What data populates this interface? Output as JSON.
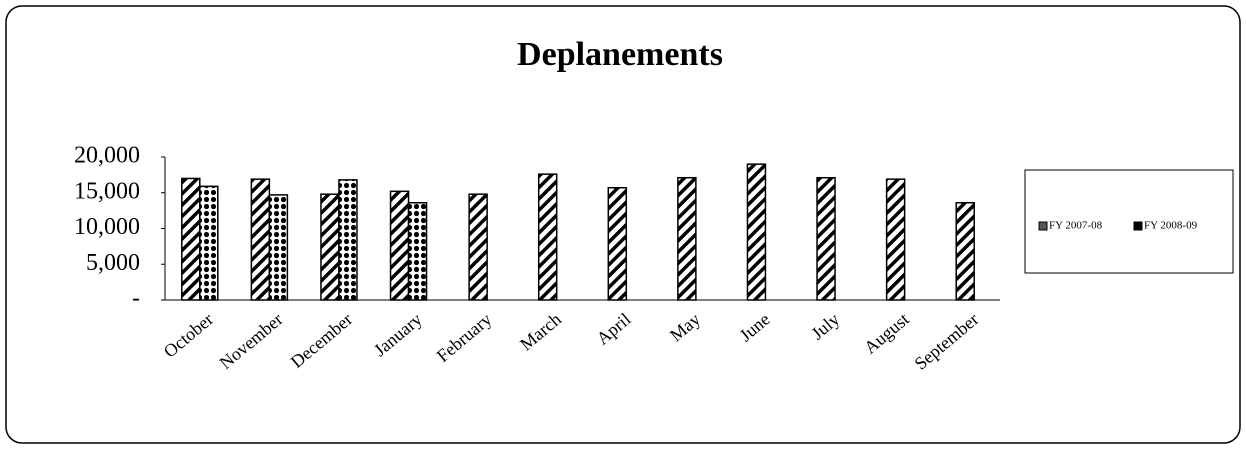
{
  "chart_data": {
    "type": "bar",
    "title": "Deplanements",
    "categories": [
      "October",
      "November",
      "December",
      "January",
      "February",
      "March",
      "April",
      "May",
      "June",
      "July",
      "August",
      "September"
    ],
    "series": [
      {
        "name": "FY 2007-08",
        "color": "#000000",
        "values": [
          17000,
          16900,
          14800,
          15200,
          14800,
          17600,
          15700,
          17100,
          19000,
          17100,
          16900,
          13600
        ]
      },
      {
        "name": "FY 2008-09",
        "color": "#000000",
        "values": [
          15900,
          14700,
          16800,
          13600,
          null,
          null,
          null,
          null,
          null,
          null,
          null,
          null
        ]
      }
    ],
    "ylim": [
      0,
      20000
    ],
    "yticks": [
      {
        "value": 0,
        "label": "-"
      },
      {
        "value": 5000,
        "label": "5,000"
      },
      {
        "value": 10000,
        "label": "10,000"
      },
      {
        "value": 15000,
        "label": "15,000"
      },
      {
        "value": 20000,
        "label": "20,000"
      }
    ],
    "grid": false,
    "legend": "right"
  }
}
